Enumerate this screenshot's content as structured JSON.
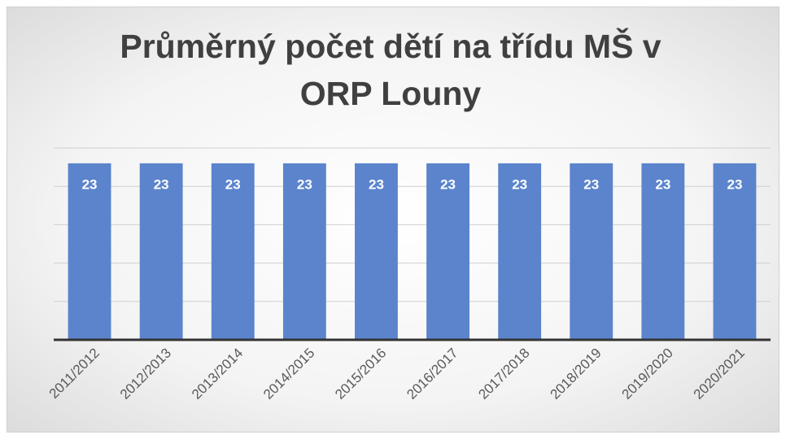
{
  "chart_data": {
    "type": "bar",
    "title": "Průměrný počet dětí na třídu MŠ v ORP Louny",
    "categories": [
      "2011/2012",
      "2012/2013",
      "2013/2014",
      "2014/2015",
      "2015/2016",
      "2016/2017",
      "2017/2018",
      "2018/2019",
      "2019/2020",
      "2020/2021"
    ],
    "values": [
      23,
      23,
      23,
      23,
      23,
      23,
      23,
      23,
      23,
      23
    ],
    "color": "#5b84cd",
    "ylim": [
      0,
      25
    ],
    "yticks": [
      0,
      5,
      10,
      15,
      20,
      25
    ],
    "grid": true
  }
}
